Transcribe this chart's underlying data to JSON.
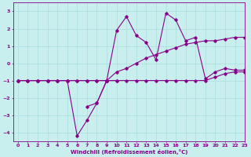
{
  "xlabel": "Windchill (Refroidissement éolien,°C)",
  "xlim": [
    -0.5,
    23
  ],
  "ylim": [
    -4.5,
    3.5
  ],
  "xticks": [
    0,
    1,
    2,
    3,
    4,
    5,
    6,
    7,
    8,
    9,
    10,
    11,
    12,
    13,
    14,
    15,
    16,
    17,
    18,
    19,
    20,
    21,
    22,
    23
  ],
  "yticks": [
    -4,
    -3,
    -2,
    -1,
    0,
    1,
    2,
    3
  ],
  "bg_color": "#c8eeee",
  "line_color": "#880088",
  "grid_color": "#aadddd",
  "series": [
    {
      "x": [
        0,
        1,
        2,
        3,
        4,
        5,
        6,
        7,
        8,
        9,
        10
      ],
      "y": [
        -1,
        -1,
        -1,
        -1,
        -1,
        -1,
        -4.2,
        -3.3,
        -2.3,
        -1,
        -1
      ]
    },
    {
      "x": [
        7,
        8,
        9
      ],
      "y": [
        -2.5,
        -2.3,
        -1
      ]
    },
    {
      "x": [
        0,
        1,
        2,
        3,
        4,
        5,
        6,
        7,
        8,
        9,
        10,
        11,
        12,
        13,
        14,
        15,
        16,
        17,
        18,
        19,
        20,
        21,
        22,
        23
      ],
      "y": [
        -1,
        -1,
        -1,
        -1,
        -1,
        -1,
        -1,
        -1,
        -1,
        -1,
        -0.5,
        -0.3,
        0.0,
        0.3,
        0.5,
        0.7,
        0.9,
        1.1,
        1.2,
        1.3,
        1.3,
        1.4,
        1.5,
        1.5
      ]
    },
    {
      "x": [
        9,
        10,
        11,
        12,
        13,
        14,
        15,
        16,
        17,
        18,
        19,
        20,
        21,
        22,
        23
      ],
      "y": [
        -1,
        1.9,
        2.7,
        1.6,
        1.2,
        0.2,
        2.9,
        2.5,
        1.3,
        1.5,
        -0.9,
        -0.5,
        -0.3,
        -0.4,
        -0.4
      ]
    },
    {
      "x": [
        0,
        1,
        2,
        3,
        4,
        5,
        6,
        7,
        8,
        9,
        10,
        11,
        12,
        13,
        14,
        15,
        16,
        17,
        18,
        19,
        20,
        21,
        22,
        23
      ],
      "y": [
        -1,
        -1,
        -1,
        -1,
        -1,
        -1,
        -1,
        -1,
        -1,
        -1,
        -1,
        -1,
        -1,
        -1,
        -1,
        -1,
        -1,
        -1,
        -1,
        -1,
        -0.8,
        -0.6,
        -0.5,
        -0.5
      ]
    }
  ]
}
